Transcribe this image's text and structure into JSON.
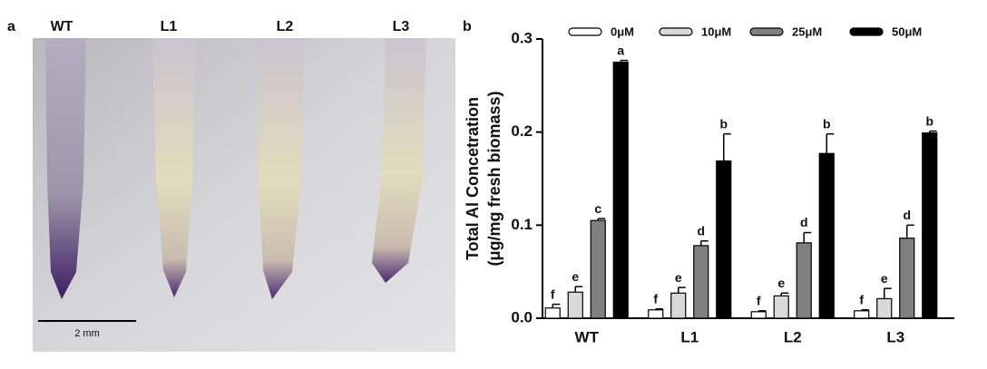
{
  "panel_a": {
    "label": "a",
    "samples": [
      "WT",
      "L1",
      "L2",
      "L3"
    ],
    "scale_bar": "2 mm"
  },
  "chart_data": {
    "type": "bar",
    "panel_label": "b",
    "y_label": [
      "Total Al Concetration",
      "(μg/mg fresh biomass)"
    ],
    "categories": [
      "WT",
      "L1",
      "L2",
      "L3"
    ],
    "ylim": [
      0,
      0.3
    ],
    "yticks": [
      {
        "value": 0,
        "label": "0.0"
      },
      0.1,
      0.2,
      0.3
    ],
    "series": [
      {
        "name": "0μM",
        "color": "#ffffff",
        "values": [
          0.011,
          0.009,
          0.007,
          0.008
        ],
        "errors": [
          0.004,
          0.001,
          0.001,
          0.001
        ],
        "letters": [
          "f",
          "f",
          "f",
          "f"
        ]
      },
      {
        "name": "10μM",
        "color": "#d9d9d9",
        "values": [
          0.028,
          0.027,
          0.024,
          0.021
        ],
        "errors": [
          0.006,
          0.006,
          0.003,
          0.011
        ],
        "letters": [
          "e",
          "e",
          "e",
          "e"
        ]
      },
      {
        "name": "25μM",
        "color": "#808080",
        "values": [
          0.105,
          0.078,
          0.081,
          0.086
        ],
        "errors": [
          0.002,
          0.005,
          0.011,
          0.014
        ],
        "letters": [
          "c",
          "d",
          "d",
          "d"
        ]
      },
      {
        "name": "50μM",
        "color": "#000000",
        "values": [
          0.275,
          0.169,
          0.177,
          0.199
        ],
        "errors": [
          0.002,
          0.029,
          0.021,
          0.002
        ],
        "letters": [
          "a",
          "b",
          "b",
          "b"
        ]
      }
    ]
  }
}
